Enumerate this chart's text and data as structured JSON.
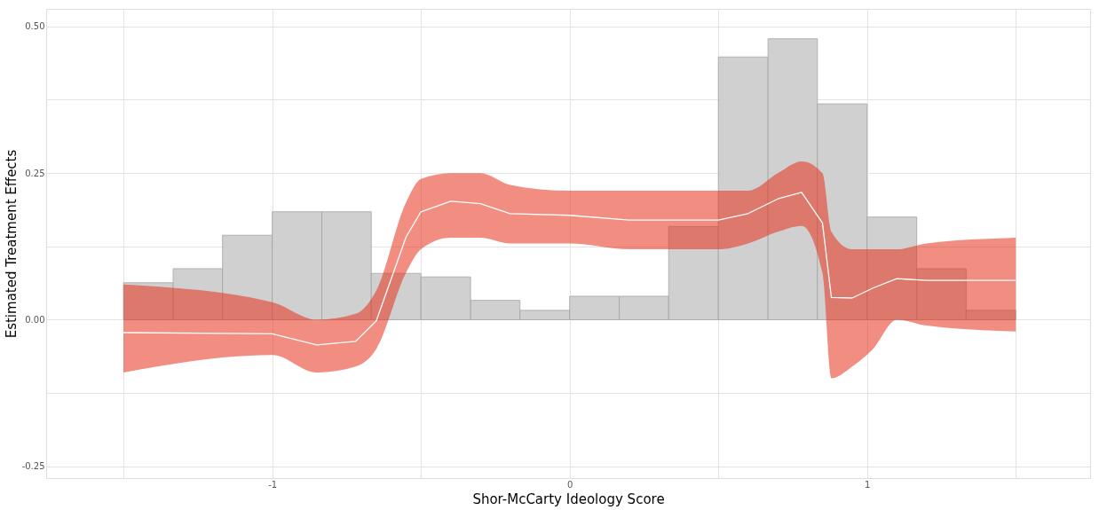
{
  "chart_data": {
    "type": "histogram",
    "xlabel": "Shor-McCarty Ideology Score",
    "ylabel": "Estimated Treatment Effects",
    "bins": [
      -1.5,
      -1.333,
      -1.167,
      -1.0,
      -0.833,
      -0.667,
      -0.5,
      -0.333,
      -0.167,
      0.0,
      0.167,
      0.333,
      0.5,
      0.667,
      0.833,
      1.0,
      1.167,
      1.333,
      1.5
    ],
    "values": [
      0.063,
      0.087,
      0.144,
      0.184,
      0.184,
      0.079,
      0.073,
      0.033,
      0.016,
      0.04,
      0.04,
      0.159,
      0.448,
      0.479,
      0.368,
      0.175,
      0.087,
      0.016
    ],
    "color": "#cccccc",
    "series": [
      {
        "type": "line",
        "color": "#ffffff",
        "x": [
          -1.5,
          -1.0,
          -0.85,
          -0.72,
          -0.65,
          -0.55,
          -0.5,
          -0.4,
          -0.3,
          -0.2,
          0,
          0.2,
          0.5,
          0.6,
          0.7,
          0.78,
          0.85,
          0.88,
          0.95,
          1.02,
          1.1,
          1.2,
          1.5
        ],
        "values": [
          -0.022,
          -0.024,
          -0.043,
          -0.037,
          -0.002,
          0.141,
          0.184,
          0.202,
          0.198,
          0.181,
          0.178,
          0.17,
          0.17,
          0.181,
          0.206,
          0.217,
          0.165,
          0.038,
          0.037,
          0.054,
          0.07,
          0.067,
          0.067
        ],
        "lower": [
          -0.09,
          -0.06,
          -0.09,
          -0.08,
          -0.05,
          0.08,
          0.12,
          0.14,
          0.14,
          0.13,
          0.13,
          0.12,
          0.12,
          0.13,
          0.15,
          0.16,
          0.08,
          -0.1,
          -0.08,
          -0.05,
          0.0,
          -0.01,
          -0.02
        ],
        "upper": [
          0.06,
          0.03,
          0.0,
          0.01,
          0.05,
          0.2,
          0.24,
          0.25,
          0.25,
          0.23,
          0.22,
          0.22,
          0.22,
          0.22,
          0.25,
          0.27,
          0.25,
          0.15,
          0.12,
          0.12,
          0.12,
          0.13,
          0.14
        ]
      }
    ],
    "xlim": [
      -1.76,
      1.75
    ],
    "ylim": [
      -0.27,
      0.53
    ],
    "xticks": [
      {
        "value": -1.5,
        "label": null
      },
      -1,
      {
        "value": -0.5,
        "label": null
      },
      0,
      {
        "value": 0.5,
        "label": null
      },
      1,
      {
        "value": 1.5,
        "label": null
      }
    ],
    "yticks": [
      -0.25,
      {
        "value": -0.125,
        "label": null
      },
      {
        "value": 0,
        "label": "0.00"
      },
      {
        "value": 0.125,
        "label": null
      },
      0.25,
      {
        "value": 0.375,
        "label": null
      },
      {
        "value": 0.5,
        "label": "0.50"
      }
    ],
    "grid": true
  }
}
